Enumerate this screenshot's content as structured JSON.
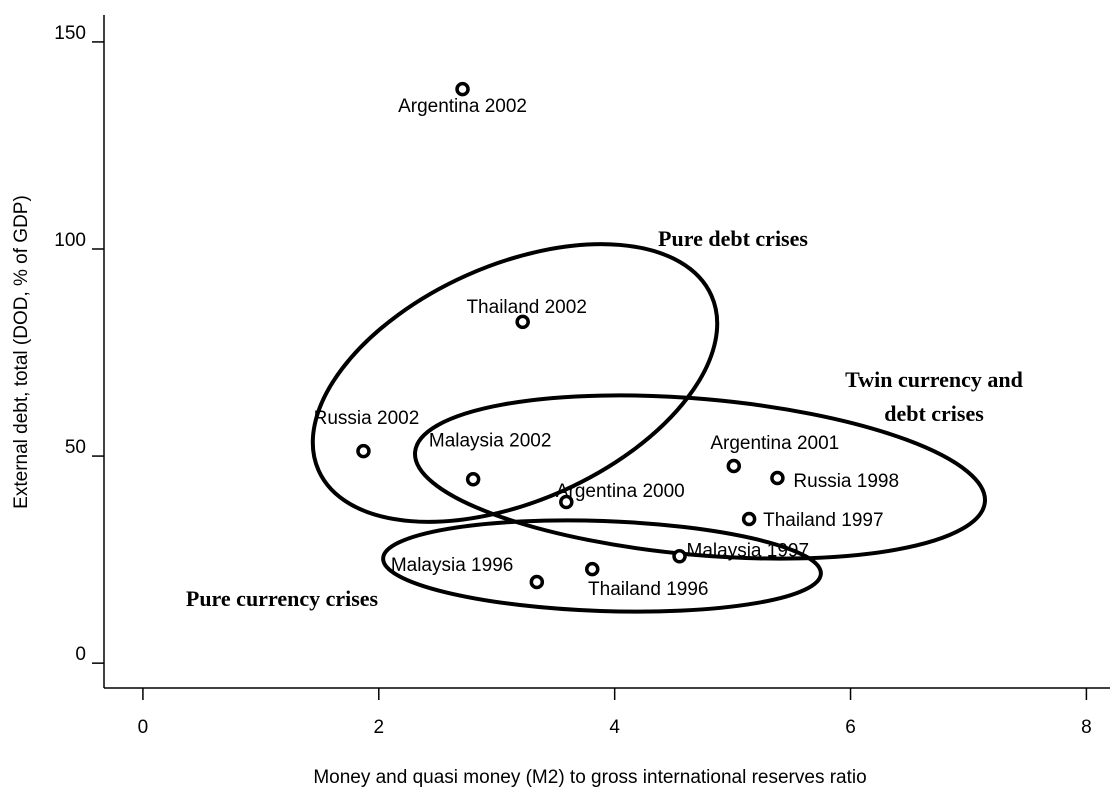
{
  "chart_data": {
    "type": "scatter",
    "x_label": "Money and quasi money (M2) to gross international reserves ratio",
    "y_label": "External debt, total (DOD, % of GDP)",
    "xlim": [
      -0.33,
      8.2
    ],
    "ylim": [
      -6,
      156.5
    ],
    "xticks": [
      0,
      2,
      4,
      6,
      8
    ],
    "yticks": [
      0,
      50,
      100,
      150
    ],
    "color": "#000000",
    "labels": [
      "Argentina 2002",
      "Thailand 2002",
      "Russia 2002",
      "Malaysia 2002",
      "Argentina 2000",
      "Argentina 2001",
      "Russia 1998",
      "Thailand 1997",
      "Malaysia 1997",
      "Malaysia 1996",
      "Thailand 1996"
    ],
    "x": [
      2.71,
      3.22,
      1.87,
      2.8,
      3.59,
      5.01,
      5.38,
      5.14,
      4.55,
      3.34,
      3.81
    ],
    "values": [
      138.6,
      82.4,
      51.2,
      44.4,
      38.9,
      47.6,
      44.7,
      34.8,
      25.8,
      19.6,
      22.7
    ],
    "annotations": [
      "Pure debt crises",
      "Twin currency and",
      "debt crises",
      "Pure currency crises"
    ]
  }
}
